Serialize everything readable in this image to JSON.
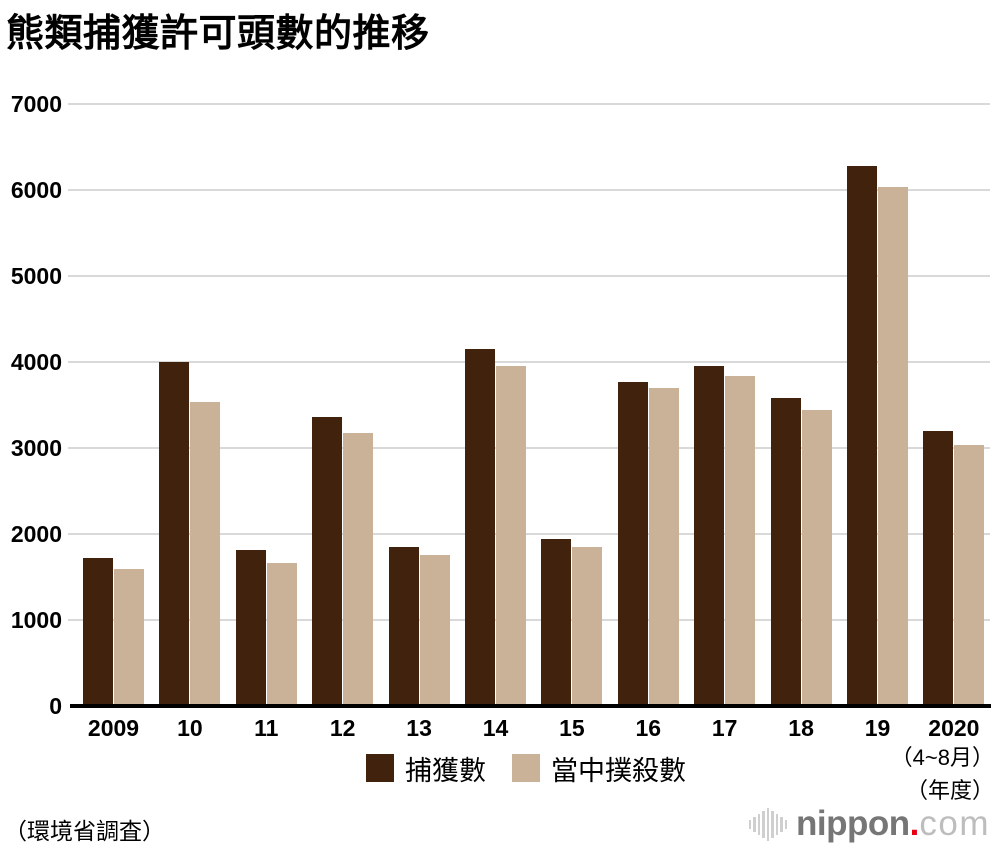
{
  "title": "熊類捕獲許可頭數的推移",
  "source_note": "（環境省調査）",
  "x_axis_notes": {
    "period": "（4~8月）",
    "unit": "（年度）"
  },
  "logo": {
    "name": "nippon.com",
    "brand": "nippon",
    "dot": ".",
    "tld": "com"
  },
  "colors": {
    "bar_dark": "#40220d",
    "bar_light": "#c9b298",
    "gridline": "#d9d9d9",
    "axis_line": "#000000",
    "logo_gray": "#767676",
    "logo_light_gray": "#bdbdbd",
    "logo_red": "#e60012"
  },
  "chart_data": {
    "type": "bar",
    "title": "熊類捕獲許可頭數的推移",
    "categories": [
      "2009",
      "10",
      "11",
      "12",
      "13",
      "14",
      "15",
      "16",
      "17",
      "18",
      "19",
      "2020"
    ],
    "series": [
      {
        "key": "captured",
        "name": "捕獲數",
        "color": "#40220d",
        "values": [
          1720,
          4000,
          1810,
          3360,
          1850,
          4150,
          1940,
          3770,
          3950,
          3580,
          6280,
          3200
        ]
      },
      {
        "key": "culled",
        "name": "當中撲殺數",
        "color": "#c9b298",
        "values": [
          1590,
          3540,
          1660,
          3180,
          1760,
          3950,
          1850,
          3700,
          3840,
          3440,
          6040,
          3030
        ]
      }
    ],
    "ylim": [
      0,
      7000
    ],
    "yticks": [
      0,
      1000,
      2000,
      3000,
      4000,
      5000,
      6000,
      7000
    ],
    "grid": true,
    "legend_position": "bottom",
    "xlabel": "（年度）",
    "ylabel": ""
  }
}
